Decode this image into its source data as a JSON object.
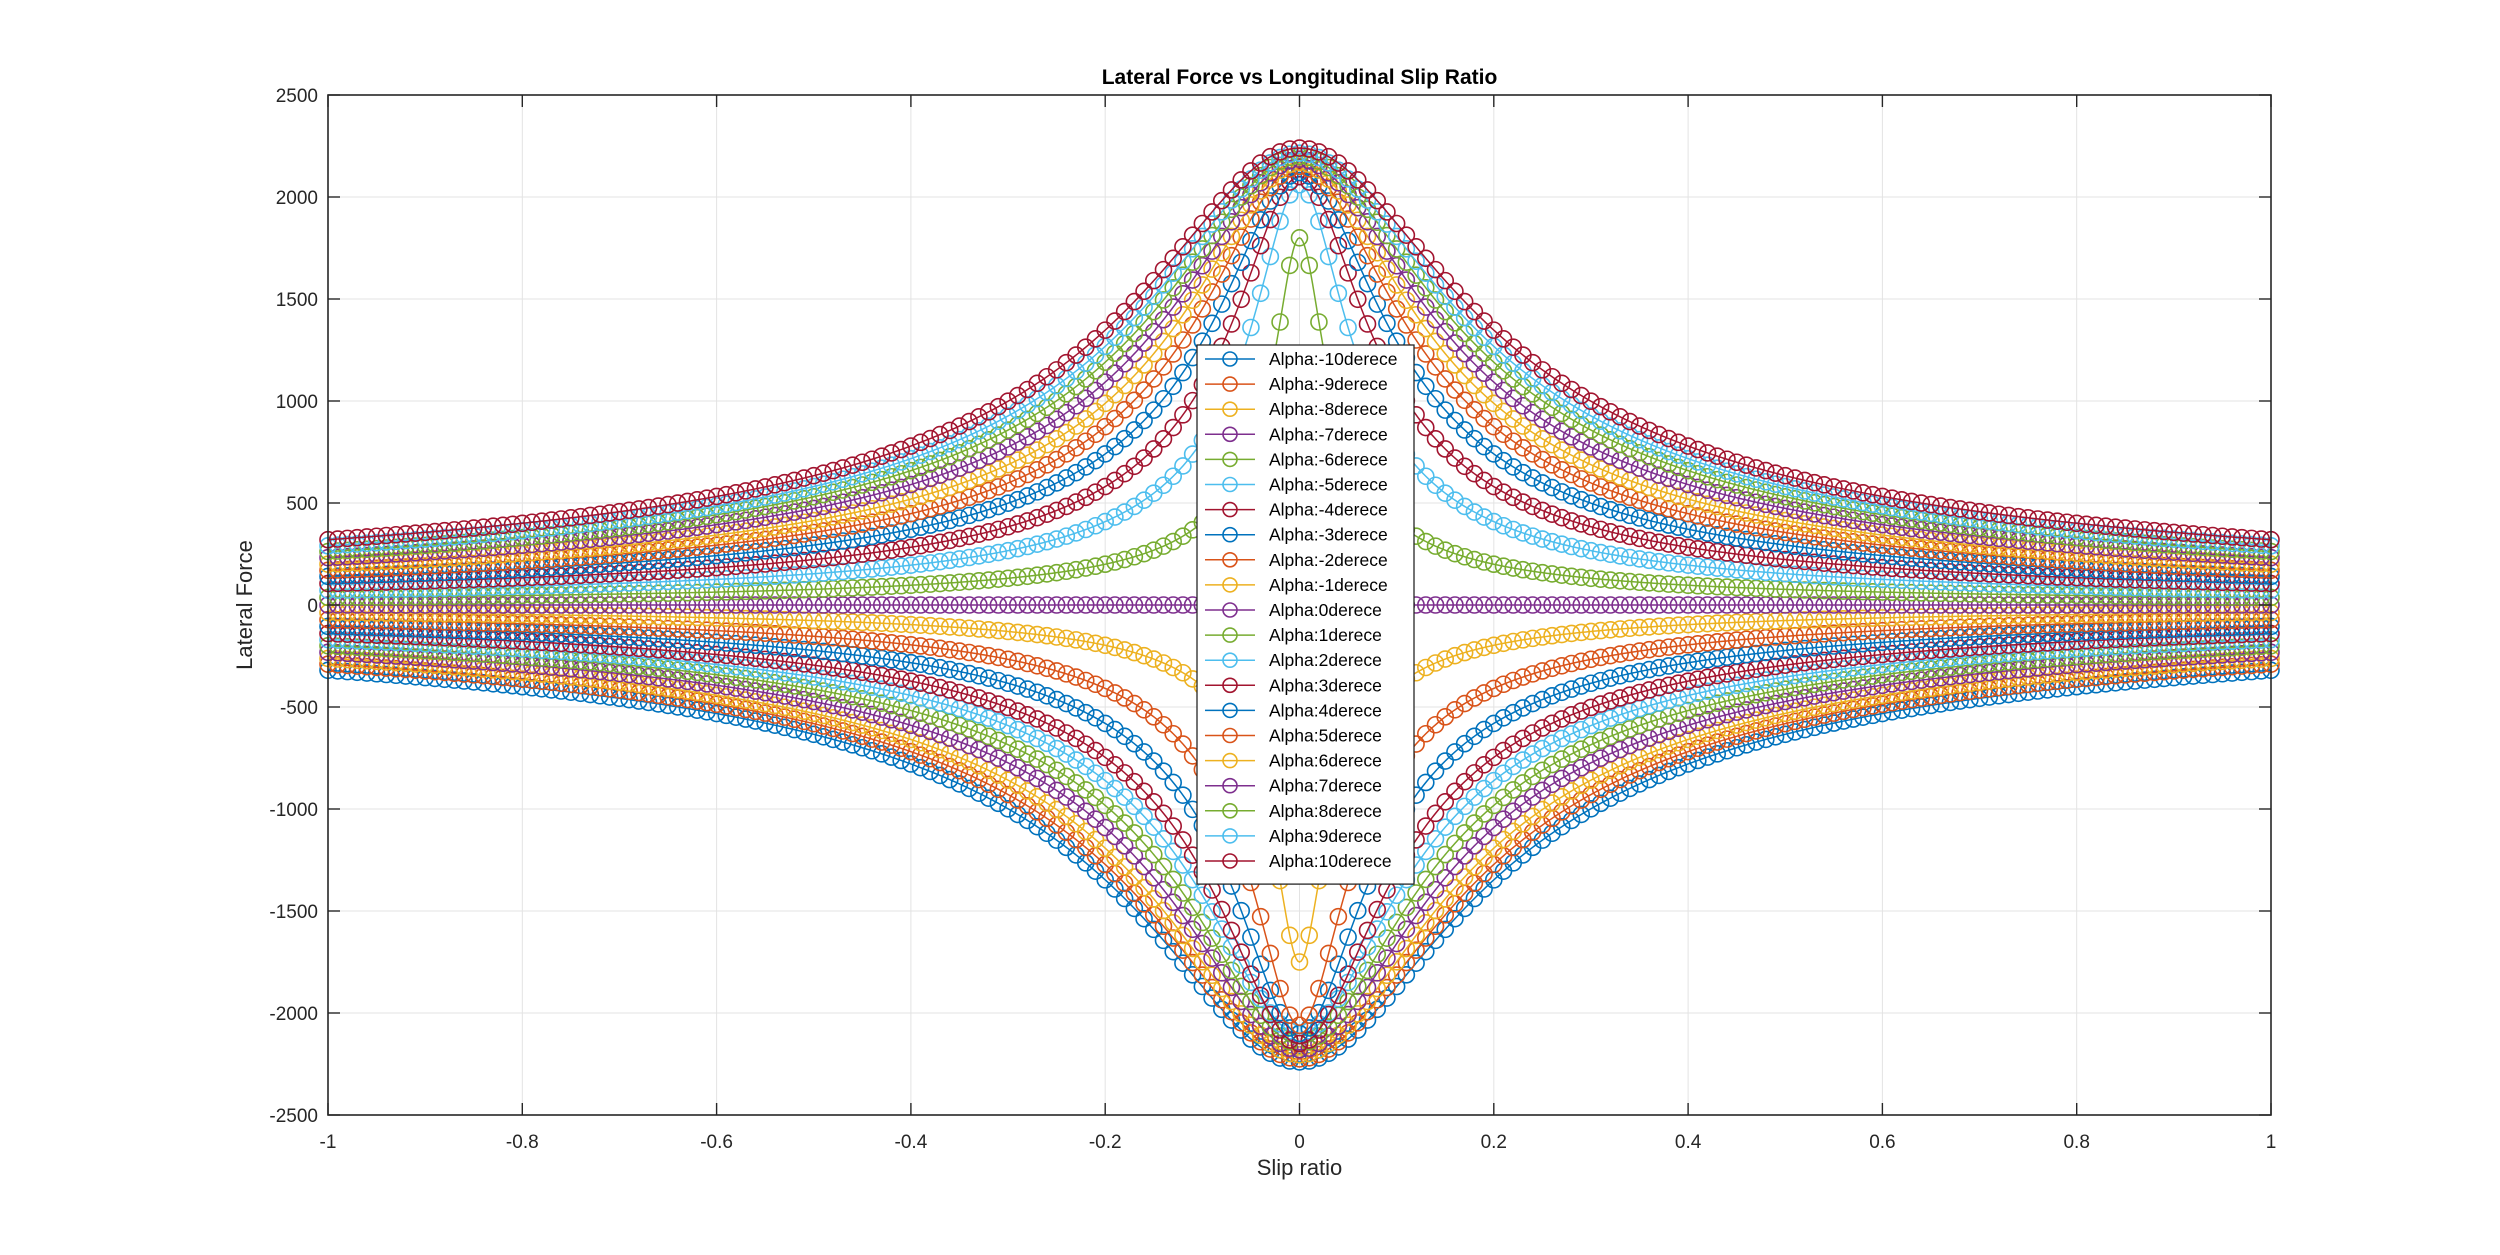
{
  "chart_data": {
    "type": "line",
    "title": "Lateral Force vs Longitudinal Slip Ratio",
    "xlabel": "Slip ratio",
    "ylabel": "Lateral Force",
    "xlim": [
      -1,
      1
    ],
    "ylim": [
      -2500,
      2500
    ],
    "xticks": [
      -1,
      -0.8,
      -0.6,
      -0.4,
      -0.2,
      0,
      0.2,
      0.4,
      0.6,
      0.8,
      1
    ],
    "xtick_labels": [
      "-1",
      "-0.8",
      "-0.6",
      "-0.4",
      "-0.2",
      "0",
      "0.2",
      "0.4",
      "0.6",
      "0.8",
      "1"
    ],
    "yticks": [
      -2500,
      -2000,
      -1500,
      -1000,
      -500,
      0,
      500,
      1000,
      1500,
      2000,
      2500
    ],
    "ytick_labels": [
      "-2500",
      "-2000",
      "-1500",
      "-1000",
      "-500",
      "0",
      "500",
      "1000",
      "1500",
      "2000",
      "2500"
    ],
    "grid": true,
    "marker": "circle",
    "legend_position": "center",
    "x_step": 0.01,
    "series": [
      {
        "name": "Alpha:-10derece",
        "alpha": -10,
        "color": "#0072BD",
        "peak": -2240,
        "half_width": 0.155,
        "value_at_x1": -320
      },
      {
        "name": "Alpha:-9derece",
        "alpha": -9,
        "color": "#D95319",
        "peak": -2225,
        "half_width": 0.145,
        "value_at_x1": -290
      },
      {
        "name": "Alpha:-8derece",
        "alpha": -8,
        "color": "#EDB120",
        "peak": -2205,
        "half_width": 0.135,
        "value_at_x1": -262
      },
      {
        "name": "Alpha:-7derece",
        "alpha": -7,
        "color": "#7E2F8E",
        "peak": -2180,
        "half_width": 0.122,
        "value_at_x1": -232
      },
      {
        "name": "Alpha:-6derece",
        "alpha": -6,
        "color": "#77AC30",
        "peak": -2150,
        "half_width": 0.11,
        "value_at_x1": -200
      },
      {
        "name": "Alpha:-5derece",
        "alpha": -5,
        "color": "#4DBEEE",
        "peak": -2100,
        "half_width": 0.097,
        "value_at_x1": -170
      },
      {
        "name": "Alpha:-4derece",
        "alpha": -4,
        "color": "#A2142F",
        "peak": -2150,
        "half_width": 0.082,
        "value_at_x1": -140
      },
      {
        "name": "Alpha:-3derece",
        "alpha": -3,
        "color": "#0072BD",
        "peak": -2100,
        "half_width": 0.065,
        "value_at_x1": -105
      },
      {
        "name": "Alpha:-2derece",
        "alpha": -2,
        "color": "#D95319",
        "peak": -2060,
        "half_width": 0.047,
        "value_at_x1": -72
      },
      {
        "name": "Alpha:-1derece",
        "alpha": -1,
        "color": "#EDB120",
        "peak": -1750,
        "half_width": 0.025,
        "value_at_x1": -37
      },
      {
        "name": "Alpha:0derece",
        "alpha": 0,
        "color": "#7E2F8E",
        "peak": 0,
        "half_width": 0.02,
        "value_at_x1": 0
      },
      {
        "name": "Alpha:1derece",
        "alpha": 1,
        "color": "#77AC30",
        "peak": 1800,
        "half_width": 0.025,
        "value_at_x1": 37
      },
      {
        "name": "Alpha:2derece",
        "alpha": 2,
        "color": "#4DBEEE",
        "peak": 2060,
        "half_width": 0.047,
        "value_at_x1": 72
      },
      {
        "name": "Alpha:3derece",
        "alpha": 3,
        "color": "#A2142F",
        "peak": 2100,
        "half_width": 0.065,
        "value_at_x1": 105
      },
      {
        "name": "Alpha:4derece",
        "alpha": 4,
        "color": "#0072BD",
        "peak": 2120,
        "half_width": 0.082,
        "value_at_x1": 140
      },
      {
        "name": "Alpha:5derece",
        "alpha": 5,
        "color": "#D95319",
        "peak": 2150,
        "half_width": 0.097,
        "value_at_x1": 170
      },
      {
        "name": "Alpha:6derece",
        "alpha": 6,
        "color": "#EDB120",
        "peak": 2170,
        "half_width": 0.11,
        "value_at_x1": 200
      },
      {
        "name": "Alpha:7derece",
        "alpha": 7,
        "color": "#7E2F8E",
        "peak": 2185,
        "half_width": 0.122,
        "value_at_x1": 232
      },
      {
        "name": "Alpha:8derece",
        "alpha": 8,
        "color": "#77AC30",
        "peak": 2200,
        "half_width": 0.135,
        "value_at_x1": 262
      },
      {
        "name": "Alpha:9derece",
        "alpha": 9,
        "color": "#4DBEEE",
        "peak": 2215,
        "half_width": 0.145,
        "value_at_x1": 290
      },
      {
        "name": "Alpha:10derece",
        "alpha": 10,
        "color": "#A2142F",
        "peak": 2240,
        "half_width": 0.155,
        "value_at_x1": 320
      }
    ]
  }
}
